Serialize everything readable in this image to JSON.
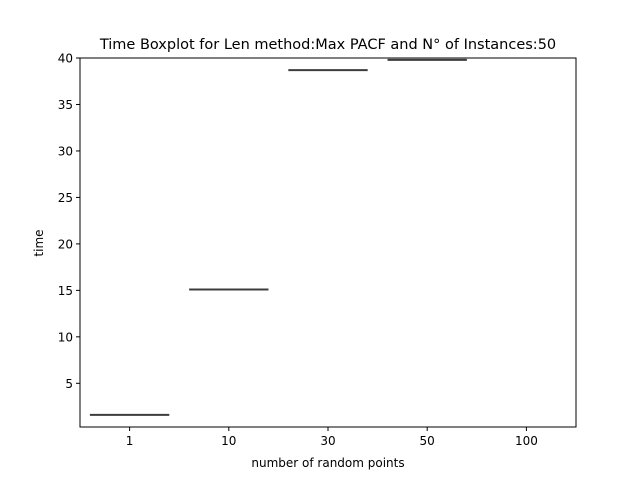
{
  "chart_data": {
    "type": "box",
    "title": "Time Boxplot for Len method:Max PACF and N° of Instances:50",
    "xlabel": "number of random points",
    "ylabel": "time",
    "categories": [
      "1",
      "10",
      "30",
      "50",
      "100"
    ],
    "ylim": [
      0.3,
      40
    ],
    "yticks": [
      5,
      10,
      15,
      20,
      25,
      30,
      35,
      40
    ],
    "grid": false,
    "boxes": [
      {
        "category": "1",
        "median": 1.6
      },
      {
        "category": "10",
        "median": 15.1
      },
      {
        "category": "30",
        "median": 38.7
      },
      {
        "category": "50",
        "median": 39.8
      },
      {
        "category": "100",
        "median": null
      }
    ],
    "colors": {
      "median_line": "#3d3d3d",
      "axis": "#000000"
    }
  }
}
